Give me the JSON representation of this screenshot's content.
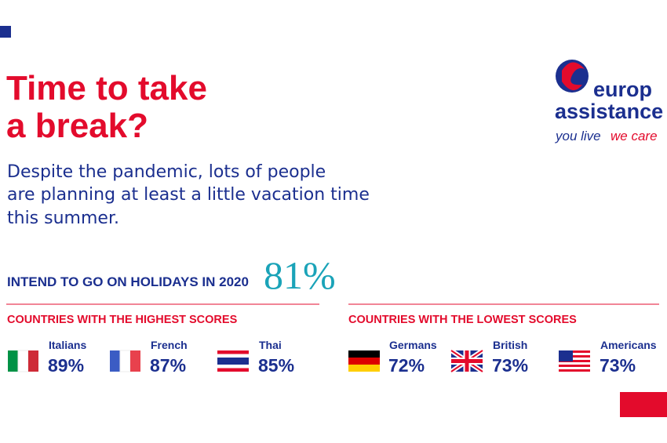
{
  "header": {
    "title_lines": [
      "Time to take",
      "a break?"
    ],
    "subtitle_lines": [
      "Despite the pandemic, lots of people",
      "are planning at least a little vacation time",
      "this summer."
    ]
  },
  "logo": {
    "line1": "europ",
    "line2": "assistance",
    "tagline_a": "you live",
    "tagline_b": "we care"
  },
  "stat": {
    "label": "INTEND TO GO ON HOLIDAYS IN 2020",
    "value": "81%"
  },
  "groups": [
    {
      "heading": "COUNTRIES WITH THE HIGHEST SCORES",
      "items": [
        {
          "name": "Italians",
          "score": "89%"
        },
        {
          "name": "French",
          "score": "87%"
        },
        {
          "name": "Thai",
          "score": "85%"
        }
      ]
    },
    {
      "heading": "COUNTRIES WITH THE LOWEST SCORES",
      "items": [
        {
          "name": "Germans",
          "score": "72%"
        },
        {
          "name": "British",
          "score": "73%"
        },
        {
          "name": "Americans",
          "score": "73%"
        }
      ]
    }
  ]
}
